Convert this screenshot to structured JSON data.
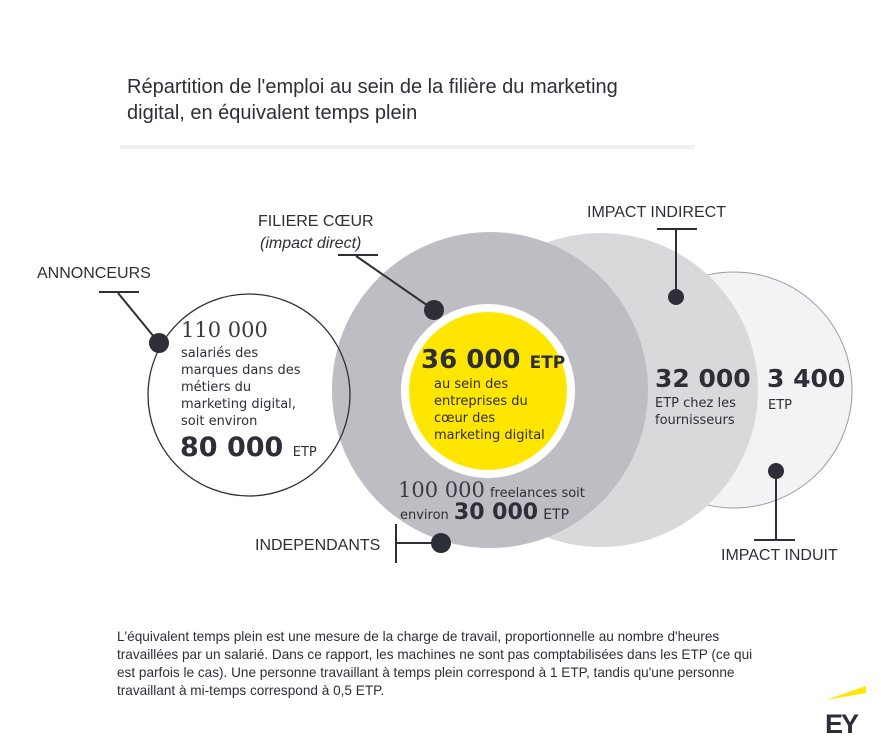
{
  "title": {
    "line1": "Répartition de l'emploi au sein de la filière du marketing",
    "line2": "digital, en équivalent temps plein"
  },
  "colors": {
    "core": "#bdbdc3",
    "indirect": "#d9d9db",
    "induit": "#f3f3f5",
    "yellow": "#ffe600",
    "ink": "#2e2e38"
  },
  "labels": {
    "annonceurs": "ANNONCEURS",
    "filiere": "FILIERE CŒUR",
    "filiere_sub": "(impact direct)",
    "indirect": "IMPACT INDIRECT",
    "induit": "IMPACT INDUIT",
    "independants": "INDEPENDANTS"
  },
  "annonceurs": {
    "count": "110 000",
    "lines": [
      "salariés des",
      "marques dans des",
      "métiers du",
      "marketing digital,",
      "soit environ"
    ],
    "etp_value": "80 000",
    "etp_unit": "ETP"
  },
  "core": {
    "value": "36 000",
    "unit": "ETP",
    "lines": [
      "au sein des",
      "entreprises du",
      "cœur des",
      "marketing digital"
    ]
  },
  "independants": {
    "count": "100 000",
    "text1": "freelances soit",
    "text2": "environ",
    "etp_value": "30 000",
    "etp_unit": "ETP"
  },
  "indirect": {
    "value": "32 000",
    "lines": [
      "ETP chez les",
      "fournisseurs"
    ]
  },
  "induit": {
    "value": "3 400",
    "unit": "ETP"
  },
  "footnote": [
    "L'équivalent temps plein est une mesure de la charge de travail, proportionnelle au nombre d'heures",
    "travaillées par un salarié. Dans ce rapport, les machines ne sont pas comptabilisées dans les ETP (ce qui",
    "est parfois le cas). Une personne travaillant à temps plein correspond à 1 ETP, tandis qu'une personne",
    "travaillant à mi-temps correspond à 0,5 ETP."
  ],
  "logo": "EY"
}
